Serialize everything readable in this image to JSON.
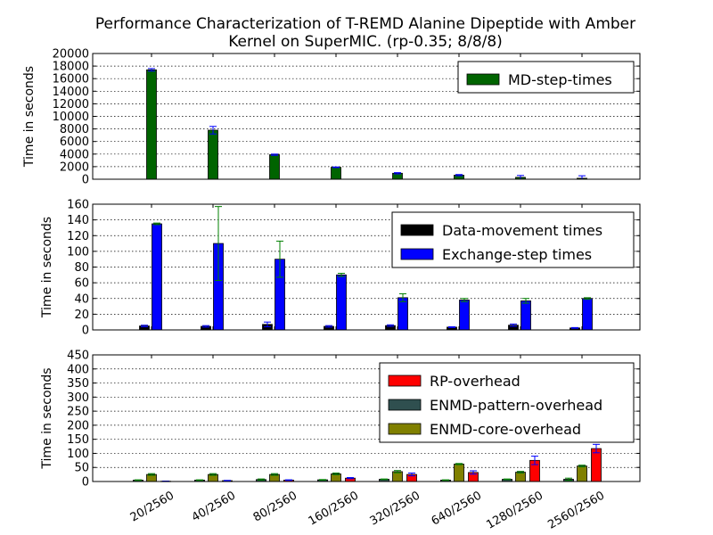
{
  "chart_data": {
    "type": "bar",
    "title_lines": [
      "Performance Characterization of T-REMD Alanine Dipeptide with Amber",
      "Kernel on SuperMIC. (rp-0.35; 8/8/8)"
    ],
    "categories": [
      "20/2560",
      "40/2560",
      "80/2560",
      "160/2560",
      "320/2560",
      "640/2560",
      "1280/2560",
      "2560/2560"
    ],
    "panels": [
      {
        "ylabel": "Time in seconds",
        "ylim": [
          0,
          20000
        ],
        "yticks": [
          "0",
          "2000",
          "4000",
          "6000",
          "8000",
          "10000",
          "12000",
          "14000",
          "16000",
          "18000",
          "20000"
        ],
        "grid": true,
        "legend_position": "top-right",
        "series": [
          {
            "name": "MD-step-times",
            "color": "#006400",
            "values": [
              17400,
              7800,
              3900,
              1900,
              950,
              650,
              300,
              150
            ],
            "errors": [
              200,
              600,
              100,
              50,
              100,
              100,
              300,
              400
            ],
            "error_color": "#0000ff"
          }
        ]
      },
      {
        "ylabel": "Time in seconds",
        "ylim": [
          0,
          160
        ],
        "yticks": [
          "0",
          "20",
          "40",
          "60",
          "80",
          "100",
          "120",
          "140",
          "160"
        ],
        "grid": true,
        "legend_position": "top-right",
        "series": [
          {
            "name": "Data-movement times",
            "color": "#000000",
            "values": [
              5,
              4.5,
              7,
              4.5,
              5.5,
              3.5,
              6,
              2.5
            ],
            "errors": [
              1,
              1,
              3,
              1,
              1,
              0.5,
              1.5,
              0.5
            ],
            "error_color": "#0000ff"
          },
          {
            "name": "Exchange-step times",
            "color": "#0000ff",
            "values": [
              135,
              110,
              90,
              70,
              41,
              38,
              37,
              40
            ],
            "errors": [
              1,
              47,
              23,
              2,
              5,
              2,
              3,
              1
            ],
            "error_color": "#008000"
          }
        ]
      },
      {
        "ylabel": "Time in seconds",
        "ylim": [
          0,
          450
        ],
        "yticks": [
          "0",
          "50",
          "100",
          "150",
          "200",
          "250",
          "300",
          "350",
          "400",
          "450"
        ],
        "grid": true,
        "legend_position": "top-right",
        "series": [
          {
            "name": "ENMD-pattern-overhead",
            "color": "#2f4f4f",
            "values": [
              5,
              5,
              7,
              6,
              8,
              5,
              8,
              8
            ],
            "errors": [
              1,
              1,
              2,
              1,
              1,
              1,
              1,
              4
            ],
            "error_color": "#008000"
          },
          {
            "name": "ENMD-core-overhead",
            "color": "#808000",
            "values": [
              25,
              25,
              25,
              27,
              35,
              62,
              33,
              55
            ],
            "errors": [
              3,
              3,
              3,
              3,
              4,
              2,
              3,
              3
            ],
            "error_color": "#008000"
          },
          {
            "name": "RP-overhead",
            "color": "#ff0000",
            "values": [
              1,
              3,
              5,
              12,
              25,
              32,
              75,
              117
            ],
            "errors": [
              0.5,
              1,
              1,
              2,
              5,
              6,
              15,
              15
            ],
            "error_color": "#0000ff"
          }
        ],
        "legend_order": [
          "RP-overhead",
          "ENMD-pattern-overhead",
          "ENMD-core-overhead"
        ]
      }
    ]
  }
}
